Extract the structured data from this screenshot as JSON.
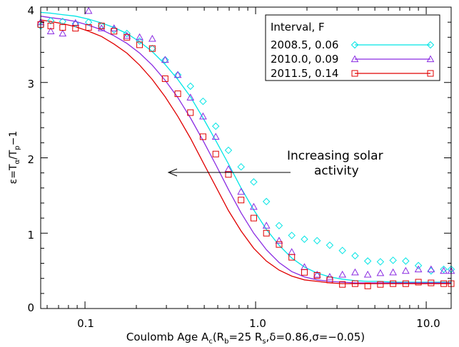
{
  "chart_data": {
    "type": "scatter",
    "x_scale": "log",
    "xlim": [
      0.055,
      14
    ],
    "ylim": [
      0,
      4
    ],
    "x_ticks": [
      "0.1",
      "1.0",
      "10.0"
    ],
    "y_ticks": [
      "0",
      "1",
      "2",
      "3",
      "4"
    ],
    "legend_title": "Interval, F",
    "legend_position": "top-right",
    "annotation": [
      "Increasing solar",
      "activity"
    ],
    "series": [
      {
        "name": "2008.5, 0.06",
        "color": "#00e5e5",
        "marker": "diamond",
        "x": [
          0.055,
          0.063,
          0.074,
          0.088,
          0.105,
          0.125,
          0.148,
          0.176,
          0.209,
          0.248,
          0.295,
          0.35,
          0.415,
          0.492,
          0.584,
          0.693,
          0.822,
          0.975,
          1.157,
          1.373,
          1.629,
          1.933,
          2.293,
          2.72,
          3.227,
          3.829,
          4.542,
          5.388,
          6.393,
          7.584,
          8.998,
          10.675,
          12.665,
          14.0
        ],
        "y": [
          3.75,
          3.82,
          3.81,
          3.78,
          3.8,
          3.75,
          3.7,
          3.65,
          3.55,
          3.45,
          3.3,
          3.1,
          2.95,
          2.75,
          2.42,
          2.1,
          1.88,
          1.68,
          1.42,
          1.1,
          0.97,
          0.92,
          0.9,
          0.84,
          0.77,
          0.7,
          0.63,
          0.62,
          0.64,
          0.63,
          0.57,
          0.5,
          0.52,
          0.52
        ],
        "fit_y": [
          3.93,
          3.92,
          3.9,
          3.88,
          3.84,
          3.79,
          3.73,
          3.65,
          3.54,
          3.41,
          3.24,
          3.04,
          2.81,
          2.53,
          2.23,
          1.92,
          1.6,
          1.31,
          1.05,
          0.84,
          0.67,
          0.55,
          0.47,
          0.42,
          0.39,
          0.37,
          0.36,
          0.36,
          0.35,
          0.35,
          0.35,
          0.35,
          0.35,
          0.35
        ]
      },
      {
        "name": "2010.0, 0.09",
        "color": "#8a2be2",
        "marker": "triangle",
        "x": [
          0.055,
          0.063,
          0.074,
          0.088,
          0.105,
          0.125,
          0.148,
          0.176,
          0.209,
          0.248,
          0.295,
          0.35,
          0.415,
          0.492,
          0.584,
          0.693,
          0.822,
          0.975,
          1.157,
          1.373,
          1.629,
          1.933,
          2.293,
          2.72,
          3.227,
          3.829,
          4.542,
          5.388,
          6.393,
          7.584,
          8.998,
          10.675,
          12.665,
          14.0
        ],
        "y": [
          3.8,
          3.68,
          3.65,
          3.79,
          3.95,
          3.72,
          3.72,
          3.62,
          3.6,
          3.58,
          3.3,
          3.1,
          2.8,
          2.55,
          2.28,
          1.85,
          1.55,
          1.35,
          1.1,
          0.9,
          0.75,
          0.55,
          0.45,
          0.42,
          0.45,
          0.48,
          0.45,
          0.47,
          0.48,
          0.5,
          0.52,
          0.52,
          0.5,
          0.5
        ],
        "fit_y": [
          3.88,
          3.86,
          3.84,
          3.81,
          3.76,
          3.7,
          3.62,
          3.52,
          3.39,
          3.23,
          3.03,
          2.8,
          2.53,
          2.23,
          1.91,
          1.58,
          1.27,
          1.0,
          0.78,
          0.61,
          0.49,
          0.42,
          0.38,
          0.36,
          0.35,
          0.34,
          0.34,
          0.34,
          0.34,
          0.34,
          0.34,
          0.34,
          0.34,
          0.34
        ]
      },
      {
        "name": "2011.5, 0.14",
        "color": "#e00000",
        "marker": "square",
        "x": [
          0.055,
          0.063,
          0.074,
          0.088,
          0.105,
          0.125,
          0.148,
          0.176,
          0.209,
          0.248,
          0.295,
          0.35,
          0.415,
          0.492,
          0.584,
          0.693,
          0.822,
          0.975,
          1.157,
          1.373,
          1.629,
          1.933,
          2.293,
          2.72,
          3.227,
          3.829,
          4.542,
          5.388,
          6.393,
          7.584,
          8.998,
          10.675,
          12.665,
          14.0
        ],
        "y": [
          3.77,
          3.75,
          3.73,
          3.72,
          3.73,
          3.75,
          3.68,
          3.6,
          3.5,
          3.45,
          3.05,
          2.85,
          2.6,
          2.28,
          2.05,
          1.78,
          1.44,
          1.2,
          1.0,
          0.85,
          0.68,
          0.48,
          0.44,
          0.38,
          0.32,
          0.33,
          0.3,
          0.32,
          0.33,
          0.33,
          0.35,
          0.34,
          0.33,
          0.33
        ],
        "fit_y": [
          3.83,
          3.81,
          3.78,
          3.74,
          3.68,
          3.61,
          3.51,
          3.39,
          3.23,
          3.04,
          2.81,
          2.55,
          2.26,
          1.94,
          1.62,
          1.3,
          1.03,
          0.8,
          0.63,
          0.51,
          0.43,
          0.38,
          0.36,
          0.34,
          0.33,
          0.33,
          0.33,
          0.33,
          0.33,
          0.33,
          0.33,
          0.33,
          0.33,
          0.33
        ]
      }
    ]
  }
}
